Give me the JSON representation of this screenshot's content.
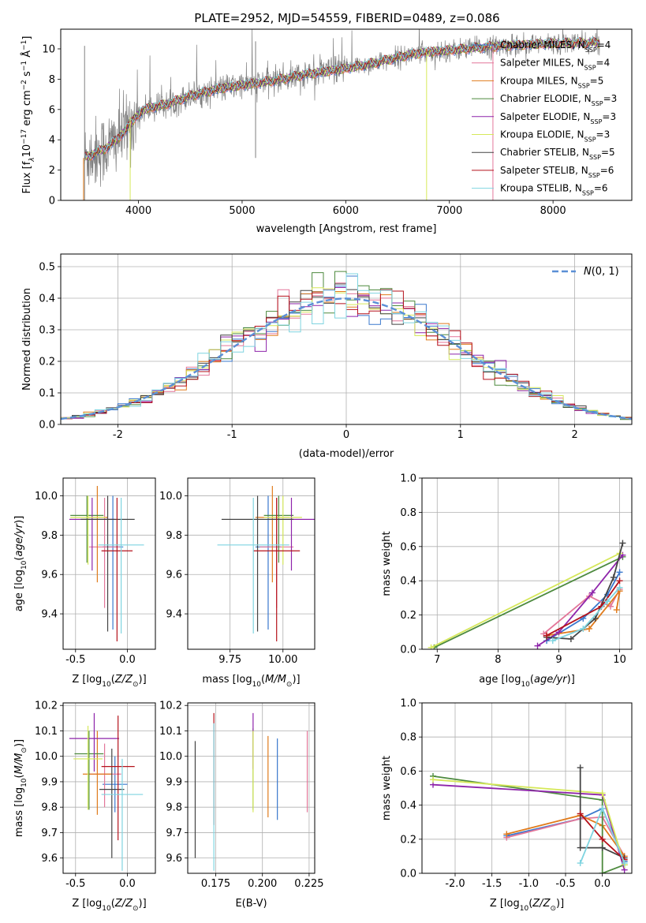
{
  "figure_title": "PLATE=2952, MJD=54559, FIBERID=0489, z=0.086",
  "colors": {
    "Chabrier MILES": "#3a78cd",
    "Salpeter MILES": "#e3779a",
    "Kroupa MILES": "#e07b1c",
    "Chabrier ELODIE": "#4d8a3e",
    "Salpeter ELODIE": "#8e24aa",
    "Kroupa ELODIE": "#d6e85a",
    "Chabrier STELIB": "#444444",
    "Salpeter STELIB": "#b5121b",
    "Kroupa STELIB": "#7fd4e0",
    "data": "#808080",
    "gaussian": "#5b8fd6",
    "grid": "#b0b0b0"
  },
  "chart_data": [
    {
      "id": "spectrum",
      "type": "line",
      "xlabel": "wavelength [Angstrom, rest frame]",
      "ylabel": "Flux [f",
      "xlim": [
        3250,
        8760
      ],
      "ylim": [
        0,
        11.3
      ],
      "xticks": [
        4000,
        5000,
        6000,
        7000,
        8000
      ],
      "yticks": [
        0,
        2,
        4,
        6,
        8,
        10
      ],
      "grid": false,
      "legend_position": "top-right",
      "legend": [
        {
          "name": "Chabrier MILES",
          "nssp": "4"
        },
        {
          "name": "Salpeter MILES",
          "nssp": "4"
        },
        {
          "name": "Kroupa MILES",
          "nssp": "5"
        },
        {
          "name": "Chabrier ELODIE",
          "nssp": "3"
        },
        {
          "name": "Salpeter ELODIE",
          "nssp": "3"
        },
        {
          "name": "Kroupa ELODIE",
          "nssp": "3"
        },
        {
          "name": "Chabrier STELIB",
          "nssp": "5"
        },
        {
          "name": "Salpeter STELIB",
          "nssp": "6"
        },
        {
          "name": "Kroupa STELIB",
          "nssp": "6"
        }
      ],
      "continuum": [
        [
          3480,
          2.8
        ],
        [
          3700,
          3.5
        ],
        [
          3850,
          4.4
        ],
        [
          3950,
          5.3
        ],
        [
          4050,
          6.0
        ],
        [
          4300,
          6.4
        ],
        [
          4500,
          6.9
        ],
        [
          4800,
          7.4
        ],
        [
          5000,
          7.6
        ],
        [
          5300,
          7.9
        ],
        [
          5600,
          8.3
        ],
        [
          6000,
          8.7
        ],
        [
          6300,
          9.1
        ],
        [
          6600,
          9.6
        ],
        [
          6800,
          9.8
        ],
        [
          7000,
          9.9
        ],
        [
          7300,
          10.1
        ],
        [
          7500,
          10.2
        ],
        [
          7800,
          10.3
        ],
        [
          8300,
          10.4
        ],
        [
          8450,
          10.4
        ]
      ],
      "data_range": [
        3480,
        8450
      ],
      "model_range": [
        3480,
        8450
      ]
    },
    {
      "id": "residual_histogram",
      "type": "line",
      "xlabel": "(data-model)/error",
      "ylabel": "Normed distribution",
      "xlim": [
        -2.5,
        2.5
      ],
      "ylim": [
        0,
        0.54
      ],
      "xticks": [
        -2,
        -1,
        0,
        1,
        2
      ],
      "yticks": [
        0.0,
        0.1,
        0.2,
        0.3,
        0.4,
        0.5
      ],
      "grid": true,
      "legend_position": "top-right",
      "gaussian_label": "N(0,1)",
      "bin_width": 0.1
    },
    {
      "id": "age_vs_Z",
      "type": "scatter",
      "xlabel": "Z [log10(Z/Z⊙)]",
      "ylabel": "age [log10(age/yr)]",
      "xlim": [
        -0.62,
        0.27
      ],
      "ylim": [
        9.22,
        10.09
      ],
      "xticks": [
        -0.5,
        0.0
      ],
      "yticks": [
        9.4,
        9.6,
        9.8,
        10.0
      ],
      "grid": true,
      "points": [
        {
          "series": "Chabrier MILES",
          "x": -0.14,
          "y": 9.74,
          "xerr": 0.1,
          "yerr": [
            9.32,
            10.0
          ]
        },
        {
          "series": "Salpeter MILES",
          "x": -0.22,
          "y": 9.74,
          "xerr": 0.15,
          "yerr": [
            9.43,
            9.99
          ]
        },
        {
          "series": "Kroupa MILES",
          "x": -0.29,
          "y": 9.89,
          "xerr": 0.1,
          "yerr": [
            9.56,
            10.05
          ]
        },
        {
          "series": "Chabrier ELODIE",
          "x": -0.39,
          "y": 9.9,
          "xerr": 0.16,
          "yerr": [
            9.66,
            10.0
          ]
        },
        {
          "series": "Salpeter ELODIE",
          "x": -0.34,
          "y": 9.88,
          "xerr": 0.22,
          "yerr": [
            9.62,
            9.99
          ]
        },
        {
          "series": "Kroupa ELODIE",
          "x": -0.38,
          "y": 9.89,
          "xerr": 0.17,
          "yerr": [
            9.65,
            10.0
          ]
        },
        {
          "series": "Chabrier STELIB",
          "x": -0.19,
          "y": 9.88,
          "xerr": 0.26,
          "yerr": [
            9.31,
            10.0
          ]
        },
        {
          "series": "Salpeter STELIB",
          "x": -0.1,
          "y": 9.72,
          "xerr": 0.15,
          "yerr": [
            9.26,
            9.99
          ]
        },
        {
          "series": "Kroupa STELIB",
          "x": -0.06,
          "y": 9.75,
          "xerr": 0.22,
          "yerr": [
            9.3,
            9.99
          ]
        }
      ]
    },
    {
      "id": "age_vs_mass",
      "type": "scatter",
      "xlabel": "mass [log10(M/M⊙)]",
      "ylabel": "",
      "xlim": [
        9.55,
        10.15
      ],
      "ylim": [
        9.22,
        10.09
      ],
      "xticks": [
        9.75,
        10.0
      ],
      "yticks": [
        9.4,
        9.6,
        9.8,
        10.0
      ],
      "grid": true,
      "points": [
        {
          "series": "Chabrier MILES",
          "x": 9.93,
          "y": 9.74,
          "xerr": 0.06,
          "yerr": [
            9.32,
            10.0
          ]
        },
        {
          "series": "Salpeter MILES",
          "x": 9.97,
          "y": 9.74,
          "xerr": 0.08,
          "yerr": [
            9.43,
            9.99
          ]
        },
        {
          "series": "Kroupa MILES",
          "x": 9.95,
          "y": 9.89,
          "xerr": 0.08,
          "yerr": [
            9.56,
            10.05
          ]
        },
        {
          "series": "Chabrier ELODIE",
          "x": 9.98,
          "y": 9.9,
          "xerr": 0.07,
          "yerr": [
            9.66,
            10.0
          ]
        },
        {
          "series": "Salpeter ELODIE",
          "x": 10.04,
          "y": 9.88,
          "xerr": 0.11,
          "yerr": [
            9.62,
            9.99
          ]
        },
        {
          "series": "Kroupa ELODIE",
          "x": 10.0,
          "y": 9.89,
          "xerr": 0.09,
          "yerr": [
            9.65,
            10.0
          ]
        },
        {
          "series": "Chabrier STELIB",
          "x": 9.88,
          "y": 9.88,
          "xerr": 0.17,
          "yerr": [
            9.31,
            10.0
          ]
        },
        {
          "series": "Salpeter STELIB",
          "x": 9.97,
          "y": 9.72,
          "xerr": 0.11,
          "yerr": [
            9.26,
            9.99
          ]
        },
        {
          "series": "Kroupa STELIB",
          "x": 9.86,
          "y": 9.75,
          "xerr": 0.17,
          "yerr": [
            9.3,
            9.99
          ]
        }
      ]
    },
    {
      "id": "mass_weight_vs_age",
      "type": "line",
      "xlabel": "age [log10(age/yr)]",
      "ylabel": "mass weight",
      "xlim": [
        6.75,
        10.2
      ],
      "ylim": [
        0,
        1
      ],
      "xticks": [
        7,
        8,
        9,
        10
      ],
      "yticks": [
        0.0,
        0.2,
        0.4,
        0.6,
        0.8,
        1.0
      ],
      "grid": true,
      "series": [
        {
          "name": "Chabrier MILES",
          "x": [
            8.8,
            9.4,
            9.8,
            10.0
          ],
          "y": [
            0.05,
            0.18,
            0.32,
            0.45
          ]
        },
        {
          "name": "Salpeter MILES",
          "x": [
            8.75,
            9.5,
            9.85,
            10.0
          ],
          "y": [
            0.09,
            0.31,
            0.25,
            0.35
          ]
        },
        {
          "name": "Kroupa MILES",
          "x": [
            8.8,
            9.5,
            10.0,
            9.95
          ],
          "y": [
            0.08,
            0.12,
            0.34,
            0.23
          ]
        },
        {
          "name": "Chabrier ELODIE",
          "x": [
            6.95,
            10.05
          ],
          "y": [
            0.01,
            0.54
          ]
        },
        {
          "name": "Salpeter ELODIE",
          "x": [
            8.65,
            9.0,
            9.55,
            10.05
          ],
          "y": [
            0.02,
            0.1,
            0.33,
            0.55
          ]
        },
        {
          "name": "Kroupa ELODIE",
          "x": [
            6.9,
            10.0
          ],
          "y": [
            0.01,
            0.56
          ]
        },
        {
          "name": "Chabrier STELIB",
          "x": [
            8.8,
            9.2,
            9.6,
            9.9,
            10.05
          ],
          "y": [
            0.07,
            0.06,
            0.18,
            0.42,
            0.62
          ]
        },
        {
          "name": "Salpeter STELIB",
          "x": [
            8.8,
            9.7,
            10.0
          ],
          "y": [
            0.08,
            0.25,
            0.4
          ]
        },
        {
          "name": "Kroupa STELIB",
          "x": [
            8.9,
            9.4,
            9.8,
            10.0
          ],
          "y": [
            0.05,
            0.12,
            0.28,
            0.36
          ]
        }
      ]
    },
    {
      "id": "mass_vs_Z",
      "type": "scatter",
      "xlabel": "Z [log10(Z/Z⊙)]",
      "ylabel": "mass [log10(M/M⊙)]",
      "xlim": [
        -0.62,
        0.27
      ],
      "ylim": [
        9.54,
        10.21
      ],
      "xticks": [
        -0.5,
        0.0
      ],
      "yticks": [
        9.6,
        9.7,
        9.8,
        9.9,
        10.0,
        10.1,
        10.2
      ],
      "grid": true,
      "points": [
        {
          "series": "Chabrier MILES",
          "x": -0.12,
          "y": 9.89,
          "xerr": 0.12,
          "yerr": [
            9.78,
            10.0
          ]
        },
        {
          "series": "Salpeter MILES",
          "x": -0.22,
          "y": 9.93,
          "xerr": 0.16,
          "yerr": [
            9.8,
            10.05
          ]
        },
        {
          "series": "Kroupa MILES",
          "x": -0.29,
          "y": 9.93,
          "xerr": 0.14,
          "yerr": [
            9.77,
            10.1
          ]
        },
        {
          "series": "Chabrier ELODIE",
          "x": -0.37,
          "y": 10.01,
          "xerr": 0.14,
          "yerr": [
            9.79,
            10.1
          ]
        },
        {
          "series": "Salpeter ELODIE",
          "x": -0.32,
          "y": 10.07,
          "xerr": 0.24,
          "yerr": [
            9.94,
            10.17
          ]
        },
        {
          "series": "Kroupa ELODIE",
          "x": -0.38,
          "y": 9.99,
          "xerr": 0.14,
          "yerr": [
            9.79,
            10.12
          ]
        },
        {
          "series": "Chabrier STELIB",
          "x": -0.15,
          "y": 9.87,
          "xerr": 0.12,
          "yerr": [
            9.6,
            10.03
          ]
        },
        {
          "series": "Salpeter STELIB",
          "x": -0.09,
          "y": 9.96,
          "xerr": 0.16,
          "yerr": [
            9.67,
            10.16
          ]
        },
        {
          "series": "Kroupa STELIB",
          "x": -0.05,
          "y": 9.85,
          "xerr": 0.2,
          "yerr": [
            9.55,
            9.99
          ]
        }
      ]
    },
    {
      "id": "mass_vs_EBV",
      "type": "scatter",
      "xlabel": "E(B-V)",
      "ylabel": "",
      "xlim": [
        0.16,
        0.228
      ],
      "ylim": [
        9.54,
        10.21
      ],
      "xticks": [
        0.175,
        0.2,
        0.225
      ],
      "yticks": [
        9.6,
        9.7,
        9.8,
        9.9,
        10.0,
        10.1,
        10.2
      ],
      "grid": true,
      "points": [
        {
          "series": "Chabrier MILES",
          "x": 0.208,
          "y": 9.89,
          "yerr": [
            9.75,
            10.07
          ]
        },
        {
          "series": "Salpeter MILES",
          "x": 0.224,
          "y": 9.95,
          "yerr": [
            9.78,
            10.1
          ]
        },
        {
          "series": "Kroupa MILES",
          "x": 0.203,
          "y": 9.93,
          "yerr": [
            9.76,
            10.08
          ]
        },
        {
          "series": "Chabrier ELODIE",
          "x": 0.195,
          "y": 9.99,
          "yerr": [
            9.79,
            10.11
          ]
        },
        {
          "series": "Salpeter ELODIE",
          "x": 0.195,
          "y": 10.07,
          "yerr": [
            9.95,
            10.17
          ]
        },
        {
          "series": "Kroupa ELODIE",
          "x": 0.195,
          "y": 9.98,
          "yerr": [
            9.78,
            10.1
          ]
        },
        {
          "series": "Chabrier STELIB",
          "x": 0.164,
          "y": 9.83,
          "yerr": [
            9.6,
            10.06
          ]
        },
        {
          "series": "Salpeter STELIB",
          "x": 0.174,
          "y": 9.96,
          "yerr": [
            9.73,
            10.17
          ]
        },
        {
          "series": "Kroupa STELIB",
          "x": 0.174,
          "y": 9.84,
          "yerr": [
            9.55,
            10.13
          ]
        }
      ]
    },
    {
      "id": "mass_weight_vs_Z",
      "type": "line",
      "xlabel": "Z [log10(Z/Z⊙)]",
      "ylabel": "mass weight",
      "xlim": [
        -2.45,
        0.4
      ],
      "ylim": [
        0,
        1
      ],
      "xticks": [
        -2.0,
        -1.5,
        -1.0,
        -0.5,
        0.0
      ],
      "yticks": [
        0.0,
        0.2,
        0.4,
        0.6,
        0.8,
        1.0
      ],
      "grid": true,
      "series": [
        {
          "name": "Chabrier MILES",
          "x": [
            -1.3,
            -0.3,
            0.0,
            0.3
          ],
          "y": [
            0.22,
            0.32,
            0.38,
            0.07
          ]
        },
        {
          "name": "Salpeter MILES",
          "x": [
            -1.3,
            -0.3,
            0.0,
            0.3
          ],
          "y": [
            0.21,
            0.32,
            0.33,
            0.1
          ]
        },
        {
          "name": "Kroupa MILES",
          "x": [
            -1.3,
            -0.3,
            0.0,
            0.3
          ],
          "y": [
            0.23,
            0.34,
            0.28,
            0.1
          ]
        },
        {
          "name": "Chabrier ELODIE",
          "x": [
            -2.3,
            0.0,
            0.0,
            0.3
          ],
          "y": [
            0.57,
            0.43,
            0.0,
            0.05
          ]
        },
        {
          "name": "Salpeter ELODIE",
          "x": [
            -2.3,
            0.0,
            0.3
          ],
          "y": [
            0.52,
            0.46,
            0.02
          ]
        },
        {
          "name": "Kroupa ELODIE",
          "x": [
            -2.3,
            0.0,
            0.3
          ],
          "y": [
            0.55,
            0.47,
            0.05
          ]
        },
        {
          "name": "Chabrier STELIB",
          "x": [
            -0.3,
            -0.3,
            0.0,
            0.3
          ],
          "y": [
            0.62,
            0.15,
            0.15,
            0.09
          ]
        },
        {
          "name": "Salpeter STELIB",
          "x": [
            -0.3,
            0.0,
            0.3
          ],
          "y": [
            0.35,
            0.2,
            0.08
          ]
        },
        {
          "name": "Kroupa STELIB",
          "x": [
            -0.3,
            0.0,
            0.3
          ],
          "y": [
            0.06,
            0.38,
            0.06
          ]
        }
      ]
    }
  ]
}
